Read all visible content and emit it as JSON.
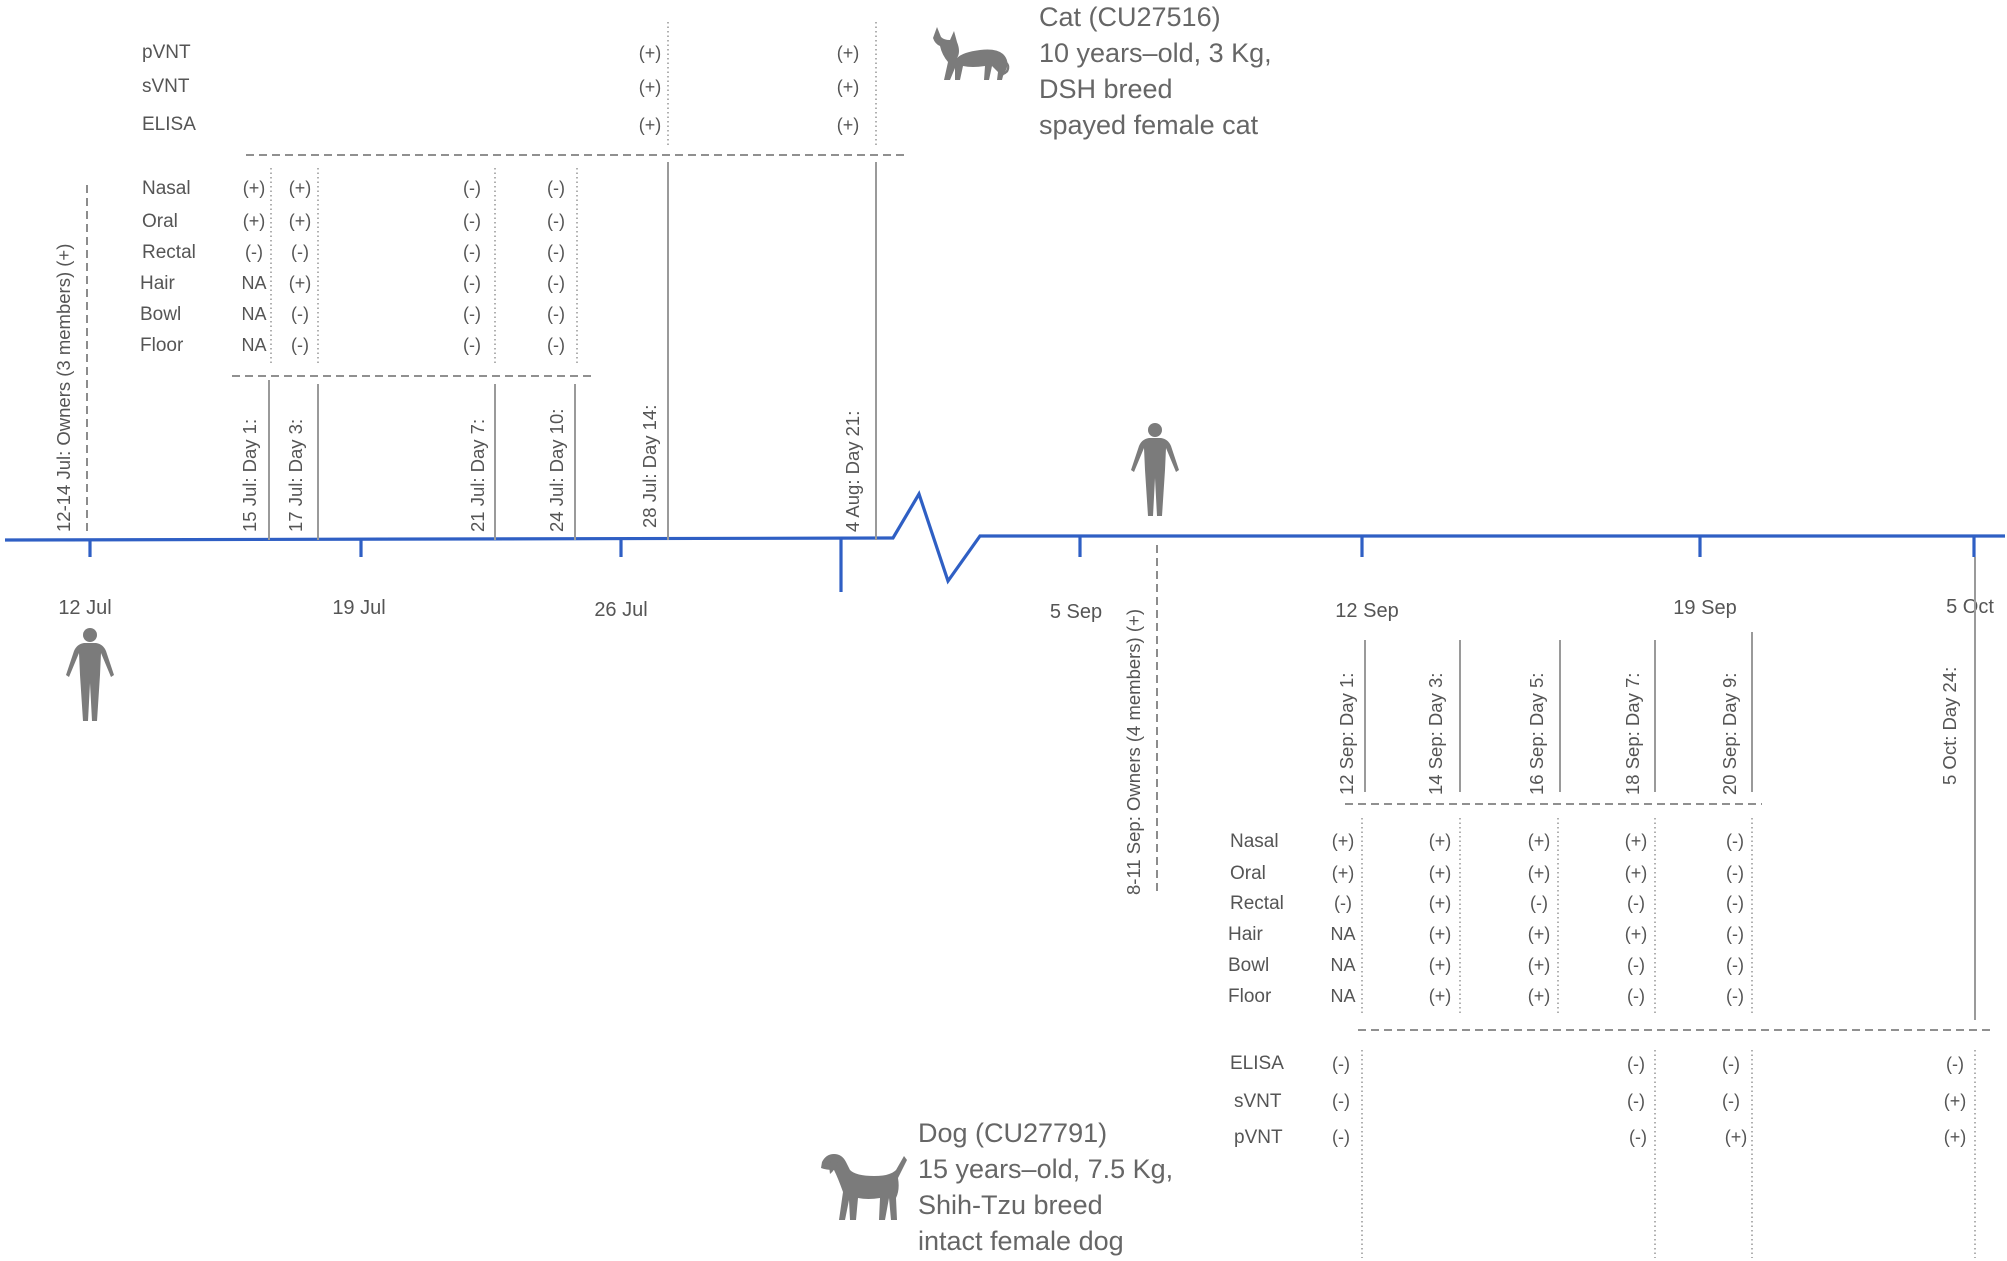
{
  "colors": {
    "axis": "#2f5fc4",
    "text": "#555555",
    "silhouette": "#7b7b7b"
  },
  "icons": {
    "cat": "cat-silhouette-icon",
    "dog": "dog-silhouette-icon",
    "human_july": "human-figure-icon",
    "human_september": "human-figure-icon"
  },
  "axis_ticks": [
    "12 Jul",
    "19 Jul",
    "26 Jul",
    "5 Sep",
    "12 Sep",
    "19 Sep",
    "5 Oct"
  ],
  "cat": {
    "title": "Cat (CU27516)",
    "line1": "10 years–old, 3 Kg,",
    "line2": "DSH breed",
    "line3": "spayed  female cat",
    "owners_event": "12-14 Jul: Owners (3 members) (+)",
    "days": [
      "15 Jul: Day 1:",
      "17 Jul: Day 3:",
      "21 Jul: Day 7:",
      "24 Jul: Day 10:",
      "28 Jul: Day 14:",
      "4 Aug: Day 21:"
    ],
    "swab_labels": [
      "Nasal",
      "Oral",
      "Rectal",
      "Hair",
      "Bowl",
      "Floor"
    ],
    "swab_results": [
      [
        "(+)",
        "(+)",
        "(-)",
        "(-)"
      ],
      [
        "(+)",
        "(+)",
        "(-)",
        "(-)"
      ],
      [
        "(-)",
        "(-)",
        "(-)",
        "(-)"
      ],
      [
        "NA",
        "(+)",
        "(-)",
        "(-)"
      ],
      [
        "NA",
        "(-)",
        "(-)",
        "(-)"
      ],
      [
        "NA",
        "(-)",
        "(-)",
        "(-)"
      ]
    ],
    "sero_labels": [
      "pVNT",
      "sVNT",
      "ELISA"
    ],
    "sero_results": [
      [
        "(+)",
        "(+)"
      ],
      [
        "(+)",
        "(+)"
      ],
      [
        "(+)",
        "(+)"
      ]
    ]
  },
  "dog": {
    "title": "Dog (CU27791)",
    "line1": "15 years–old, 7.5 Kg,",
    "line2": "Shih-Tzu breed",
    "line3": "intact female dog",
    "owners_event": "8-11 Sep: Owners (4 members) (+)",
    "days": [
      "12 Sep: Day 1:",
      "14 Sep: Day 3:",
      "16 Sep: Day 5:",
      "18 Sep: Day 7:",
      "20 Sep: Day 9:",
      "5 Oct: Day 24:"
    ],
    "swab_labels": [
      "Nasal",
      "Oral",
      "Rectal",
      "Hair",
      "Bowl",
      "Floor"
    ],
    "swab_results": [
      [
        "(+)",
        "(+)",
        "(+)",
        "(+)",
        "(-)"
      ],
      [
        "(+)",
        "(+)",
        "(+)",
        "(+)",
        "(-)"
      ],
      [
        "(-)",
        "(+)",
        "(-)",
        "(-)",
        "(-)"
      ],
      [
        "NA",
        "(+)",
        "(+)",
        "(+)",
        "(-)"
      ],
      [
        "NA",
        "(+)",
        "(+)",
        "(-)",
        "(-)"
      ],
      [
        "NA",
        "(+)",
        "(+)",
        "(-)",
        "(-)"
      ]
    ],
    "sero_labels": [
      "ELISA",
      "sVNT",
      "pVNT"
    ],
    "sero_results": [
      [
        "(-)",
        "(-)",
        "(-)",
        "(-)"
      ],
      [
        "(-)",
        "(-)",
        "(-)",
        "(+)"
      ],
      [
        "(-)",
        "(-)",
        "(+)",
        "(+)"
      ]
    ]
  }
}
